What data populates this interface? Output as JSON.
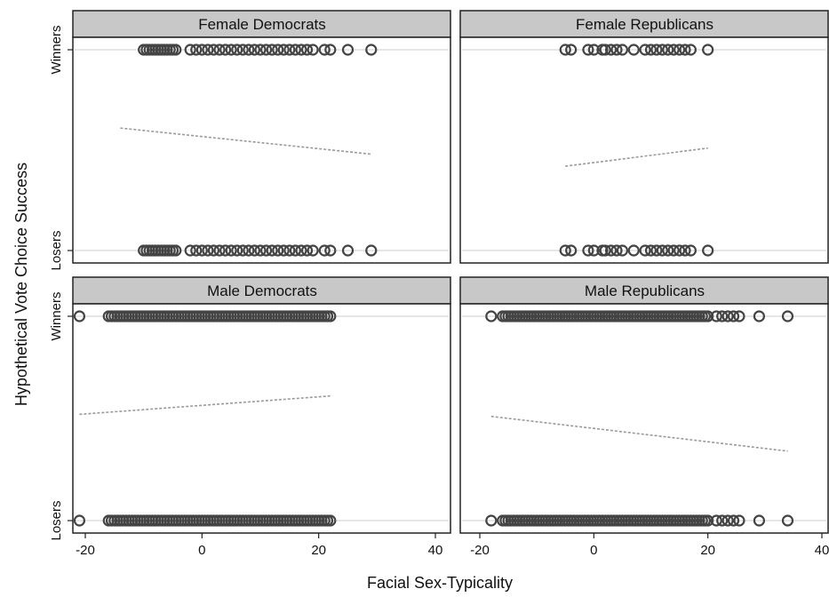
{
  "chart_data": {
    "type": "scatter",
    "xlabel": "Facial Sex-Typicality",
    "ylabel": "Hypothetical Vote Choice Success",
    "y_categories": [
      "Losers",
      "Winners"
    ],
    "grid": true,
    "colors": {
      "strip_bg": "#c8c8c8",
      "marker": "#444444",
      "fit_line": "#9a9a9a",
      "gridline": "#dddddd"
    },
    "panels": [
      {
        "title": "Female Democrats",
        "xlim": [
          -22,
          40
        ],
        "xticks": [
          -20,
          0,
          20,
          40
        ],
        "show_y_labels": true,
        "show_x_labels": false,
        "winners_x": [
          -10,
          -9.5,
          -9,
          -8.5,
          -8,
          -7.5,
          -7,
          -6.5,
          -6,
          -5.5,
          -5,
          -4.5,
          -2,
          -1,
          0,
          1,
          2,
          3,
          4,
          5,
          6,
          7,
          8,
          9,
          10,
          11,
          12,
          13,
          14,
          15,
          16,
          17,
          18,
          19,
          21,
          22,
          25,
          29
        ],
        "losers_x": [
          -10,
          -9.5,
          -9,
          -8.5,
          -8,
          -7.5,
          -7,
          -6.5,
          -6,
          -5.5,
          -5,
          -4.5,
          -2,
          -1,
          0,
          1,
          2,
          3,
          4,
          5,
          6,
          7,
          8,
          9,
          10,
          11,
          12,
          13,
          14,
          15,
          16,
          17,
          18,
          19,
          21,
          22,
          25,
          29
        ],
        "fit": {
          "x": [
            -14,
            29
          ],
          "y": [
            0.61,
            0.48
          ]
        }
      },
      {
        "title": "Female Republicans",
        "xlim": [
          -20,
          40
        ],
        "xticks": [
          -20,
          0,
          20,
          40
        ],
        "show_y_labels": false,
        "show_x_labels": false,
        "winners_x": [
          -5,
          -4,
          -1,
          0,
          1.5,
          2,
          3,
          4,
          5,
          7,
          9,
          10,
          11,
          12,
          13,
          14,
          15,
          16,
          17,
          20
        ],
        "losers_x": [
          -5,
          -4,
          -1,
          0,
          1.5,
          2,
          3,
          4,
          5,
          7,
          9,
          10,
          11,
          12,
          13,
          14,
          15,
          16,
          17,
          20
        ],
        "fit": {
          "x": [
            -5,
            20
          ],
          "y": [
            0.42,
            0.51
          ]
        }
      },
      {
        "title": "Male Democrats",
        "xlim": [
          -22,
          40
        ],
        "xticks": [
          -20,
          0,
          20,
          40
        ],
        "show_y_labels": true,
        "show_x_labels": true,
        "winners_x": [
          -21,
          -16,
          -15.5,
          -15,
          -14.5,
          -14,
          -13.5,
          -13,
          -12.5,
          -12,
          -11.5,
          -11,
          -10.5,
          -10,
          -9.5,
          -9,
          -8.5,
          -8,
          -7.5,
          -7,
          -6.5,
          -6,
          -5.5,
          -5,
          -4.5,
          -4,
          -3.5,
          -3,
          -2.5,
          -2,
          -1.5,
          -1,
          -0.5,
          0,
          0.5,
          1,
          1.5,
          2,
          2.5,
          3,
          3.5,
          4,
          4.5,
          5,
          5.5,
          6,
          6.5,
          7,
          7.5,
          8,
          8.5,
          9,
          9.5,
          10,
          10.5,
          11,
          11.5,
          12,
          12.5,
          13,
          13.5,
          14,
          14.5,
          15,
          15.5,
          16,
          16.5,
          17,
          17.5,
          18,
          18.5,
          19,
          19.5,
          20,
          20.5,
          21,
          21.5,
          22
        ],
        "losers_x": [
          -21,
          -16,
          -15.5,
          -15,
          -14.5,
          -14,
          -13.5,
          -13,
          -12.5,
          -12,
          -11.5,
          -11,
          -10.5,
          -10,
          -9.5,
          -9,
          -8.5,
          -8,
          -7.5,
          -7,
          -6.5,
          -6,
          -5.5,
          -5,
          -4.5,
          -4,
          -3.5,
          -3,
          -2.5,
          -2,
          -1.5,
          -1,
          -0.5,
          0,
          0.5,
          1,
          1.5,
          2,
          2.5,
          3,
          3.5,
          4,
          4.5,
          5,
          5.5,
          6,
          6.5,
          7,
          7.5,
          8,
          8.5,
          9,
          9.5,
          10,
          10.5,
          11,
          11.5,
          12,
          12.5,
          13,
          13.5,
          14,
          14.5,
          15,
          15.5,
          16,
          16.5,
          17,
          17.5,
          18,
          18.5,
          19,
          19.5,
          20,
          20.5,
          21,
          21.5,
          22
        ],
        "fit": {
          "x": [
            -21,
            22
          ],
          "y": [
            0.52,
            0.61
          ]
        }
      },
      {
        "title": "Male Republicans",
        "xlim": [
          -20,
          40
        ],
        "xticks": [
          -20,
          0,
          20,
          40
        ],
        "show_y_labels": false,
        "show_x_labels": true,
        "winners_x": [
          -18,
          -16,
          -15.5,
          -15,
          -14.5,
          -14,
          -13.5,
          -13,
          -12.5,
          -12,
          -11.5,
          -11,
          -10.5,
          -10,
          -9.5,
          -9,
          -8.5,
          -8,
          -7.5,
          -7,
          -6.5,
          -6,
          -5.5,
          -5,
          -4.5,
          -4,
          -3.5,
          -3,
          -2.5,
          -2,
          -1.5,
          -1,
          -0.5,
          0,
          0.5,
          1,
          1.5,
          2,
          2.5,
          3,
          3.5,
          4,
          4.5,
          5,
          5.5,
          6,
          6.5,
          7,
          7.5,
          8,
          8.5,
          9,
          9.5,
          10,
          10.5,
          11,
          11.5,
          12,
          12.5,
          13,
          13.5,
          14,
          14.5,
          15,
          15.5,
          16,
          16.5,
          17,
          17.5,
          18,
          18.5,
          19,
          19.5,
          20,
          21.5,
          22.5,
          23.5,
          24.5,
          25.5,
          29,
          34
        ],
        "losers_x": [
          -18,
          -16,
          -15.5,
          -15,
          -14.5,
          -14,
          -13.5,
          -13,
          -12.5,
          -12,
          -11.5,
          -11,
          -10.5,
          -10,
          -9.5,
          -9,
          -8.5,
          -8,
          -7.5,
          -7,
          -6.5,
          -6,
          -5.5,
          -5,
          -4.5,
          -4,
          -3.5,
          -3,
          -2.5,
          -2,
          -1.5,
          -1,
          -0.5,
          0,
          0.5,
          1,
          1.5,
          2,
          2.5,
          3,
          3.5,
          4,
          4.5,
          5,
          5.5,
          6,
          6.5,
          7,
          7.5,
          8,
          8.5,
          9,
          9.5,
          10,
          10.5,
          11,
          11.5,
          12,
          12.5,
          13,
          13.5,
          14,
          14.5,
          15,
          15.5,
          16,
          16.5,
          17,
          17.5,
          18,
          18.5,
          19,
          19.5,
          20,
          21.5,
          22.5,
          23.5,
          24.5,
          25.5,
          29,
          34
        ],
        "fit": {
          "x": [
            -18,
            34
          ],
          "y": [
            0.51,
            0.34
          ]
        }
      }
    ]
  }
}
